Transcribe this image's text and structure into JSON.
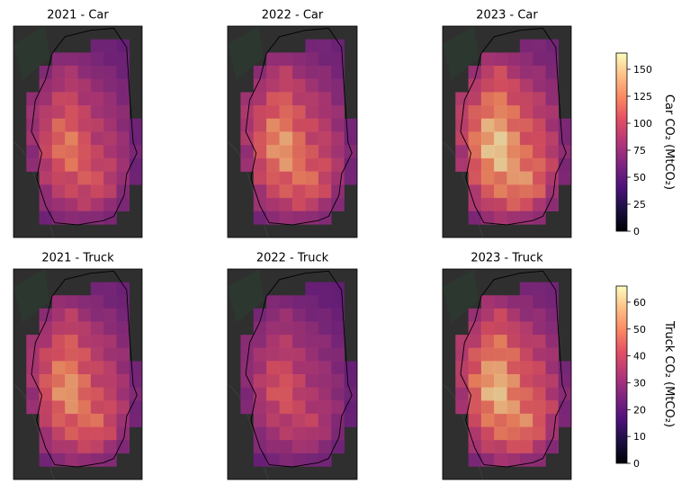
{
  "chart_data": {
    "type": "heatmap",
    "grid": {
      "rows": 16,
      "cols": 10
    },
    "colormap": "magma",
    "colorbars": [
      {
        "label": "Car CO₂ (MtCO₂)",
        "min": 0,
        "max": 165,
        "ticks": [
          "0",
          "25",
          "50",
          "75",
          "100",
          "125",
          "150"
        ]
      },
      {
        "label": "Truck CO₂ (MtCO₂)",
        "min": 0,
        "max": 66,
        "ticks": [
          "0",
          "10",
          "20",
          "30",
          "40",
          "50",
          "60"
        ]
      }
    ],
    "panels": [
      {
        "title": "2021 - Car",
        "colorbar": 0,
        "scale": 0.72
      },
      {
        "title": "2022 - Car",
        "colorbar": 0,
        "scale": 0.84
      },
      {
        "title": "2023 - Car",
        "colorbar": 0,
        "scale": 1.0
      },
      {
        "title": "2021 - Truck",
        "colorbar": 1,
        "scale": 0.87
      },
      {
        "title": "2022 - Truck",
        "colorbar": 1,
        "scale": 0.62
      },
      {
        "title": "2023 - Truck",
        "colorbar": 1,
        "scale": 1.0
      }
    ],
    "car_2023_grid": [
      [
        null,
        null,
        null,
        null,
        null,
        null,
        null,
        null,
        null,
        null
      ],
      [
        null,
        null,
        null,
        null,
        null,
        null,
        35,
        30,
        25,
        null
      ],
      [
        null,
        null,
        null,
        55,
        60,
        45,
        40,
        35,
        30,
        null
      ],
      [
        null,
        null,
        55,
        70,
        80,
        65,
        50,
        45,
        35,
        null
      ],
      [
        null,
        null,
        60,
        85,
        95,
        75,
        65,
        55,
        40,
        null
      ],
      [
        null,
        65,
        80,
        100,
        110,
        90,
        75,
        65,
        50,
        null
      ],
      [
        null,
        70,
        90,
        115,
        120,
        100,
        85,
        70,
        55,
        null
      ],
      [
        null,
        75,
        100,
        130,
        135,
        110,
        90,
        80,
        60,
        30
      ],
      [
        null,
        70,
        110,
        145,
        150,
        120,
        95,
        85,
        65,
        35
      ],
      [
        null,
        60,
        105,
        140,
        165,
        125,
        100,
        90,
        70,
        40
      ],
      [
        null,
        55,
        95,
        125,
        140,
        130,
        110,
        95,
        75,
        35
      ],
      [
        null,
        null,
        85,
        110,
        120,
        125,
        120,
        100,
        65,
        30
      ],
      [
        null,
        null,
        70,
        95,
        105,
        110,
        115,
        90,
        55,
        null
      ],
      [
        null,
        null,
        55,
        75,
        85,
        90,
        85,
        70,
        40,
        null
      ],
      [
        null,
        null,
        35,
        45,
        55,
        60,
        50,
        40,
        null,
        null
      ],
      [
        null,
        null,
        null,
        null,
        null,
        null,
        null,
        null,
        null,
        null
      ]
    ]
  }
}
